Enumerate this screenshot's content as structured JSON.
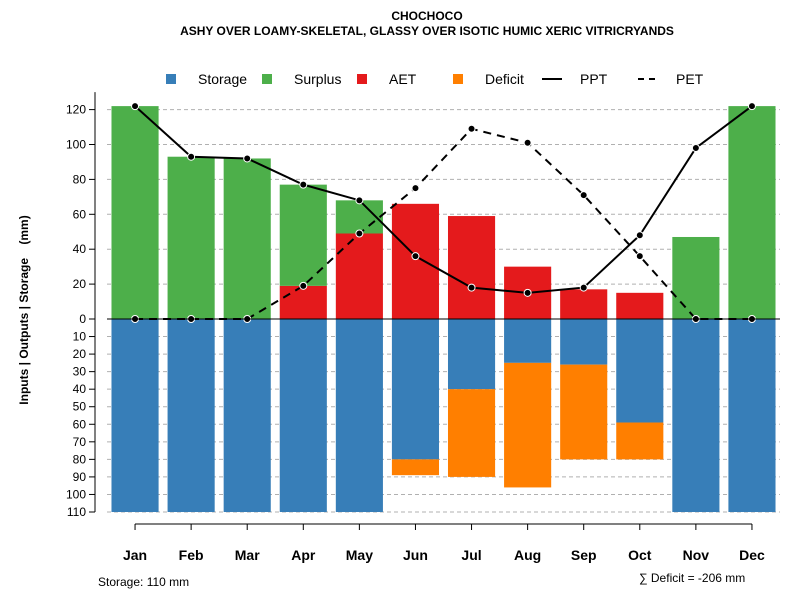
{
  "chart_data": {
    "type": "bar",
    "title": "CHOCHOCO",
    "subtitle": "ASHY OVER LOAMY-SKELETAL, GLASSY OVER ISOTIC HUMIC XERIC VITRICRYANDS",
    "ylabel": "Inputs | Outputs | Storage    (mm)",
    "categories": [
      "Jan",
      "Feb",
      "Mar",
      "Apr",
      "May",
      "Jun",
      "Jul",
      "Aug",
      "Sep",
      "Oct",
      "Nov",
      "Dec"
    ],
    "ylim": [
      -110,
      130
    ],
    "y_ticks_positive": [
      0,
      20,
      40,
      60,
      80,
      100,
      120
    ],
    "y_ticks_negative": [
      10,
      20,
      30,
      40,
      50,
      60,
      70,
      80,
      90,
      100,
      110
    ],
    "grid": true,
    "series": [
      {
        "name": "Storage",
        "color": "#377eb8",
        "values": [
          110,
          110,
          110,
          110,
          110,
          80,
          40,
          25,
          26,
          59,
          110,
          110
        ]
      },
      {
        "name": "Surplus",
        "color": "#4daf4a",
        "values": [
          122,
          93,
          92,
          58,
          19,
          0,
          0,
          0,
          0,
          0,
          47,
          122
        ]
      },
      {
        "name": "AET",
        "color": "#e41a1c",
        "values": [
          0,
          0,
          0,
          19,
          49,
          66,
          59,
          30,
          17,
          15,
          0,
          0
        ]
      },
      {
        "name": "Deficit",
        "color": "#ff7f00",
        "values": [
          0,
          0,
          0,
          0,
          0,
          9,
          50,
          71,
          54,
          21,
          0,
          0
        ]
      },
      {
        "name": "PPT",
        "color": "#000000",
        "style": "solid",
        "values": [
          122,
          93,
          92,
          77,
          68,
          36,
          18,
          15,
          18,
          48,
          98,
          122
        ]
      },
      {
        "name": "PET",
        "color": "#000000",
        "style": "dashed",
        "values": [
          0,
          0,
          0,
          19,
          49,
          75,
          109,
          101,
          71,
          36,
          0,
          0
        ]
      }
    ],
    "legend": {
      "position": "top",
      "entries": [
        {
          "label": "Storage",
          "kind": "box",
          "color": "#377eb8"
        },
        {
          "label": "Surplus",
          "kind": "box",
          "color": "#4daf4a"
        },
        {
          "label": "AET",
          "kind": "box",
          "color": "#e41a1c"
        },
        {
          "label": "Deficit",
          "kind": "box",
          "color": "#ff7f00"
        },
        {
          "label": "PPT",
          "kind": "solid-line",
          "color": "#000000"
        },
        {
          "label": "PET",
          "kind": "dashed-line",
          "color": "#000000"
        }
      ]
    },
    "notes": {
      "storage": "Storage: 110 mm",
      "deficit": "∑ Deficit = -206 mm"
    }
  }
}
